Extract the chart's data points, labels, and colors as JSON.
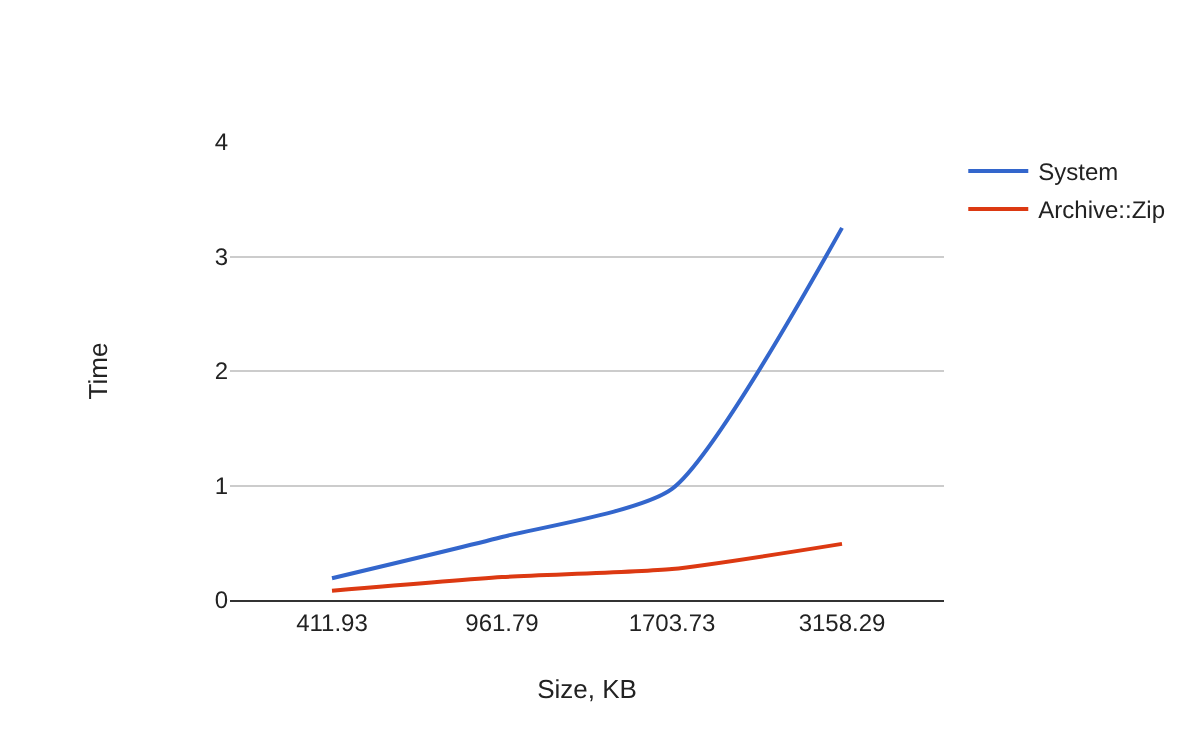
{
  "chart_data": {
    "type": "line",
    "xlabel": "Size, KB",
    "ylabel": "Time",
    "categories": [
      "411.93",
      "961.79",
      "1703.73",
      "3158.29"
    ],
    "series": [
      {
        "name": "System",
        "color": "#3366cc",
        "values": [
          0.19,
          0.55,
          0.97,
          3.25
        ]
      },
      {
        "name": "Archive::Zip",
        "color": "#dc3912",
        "values": [
          0.08,
          0.2,
          0.27,
          0.49
        ]
      }
    ],
    "ylim": [
      0,
      4
    ],
    "yticks": [
      0,
      1,
      2,
      3,
      4
    ],
    "grid": "y",
    "legend": "top right",
    "marker": "none",
    "line_style": "solid"
  }
}
